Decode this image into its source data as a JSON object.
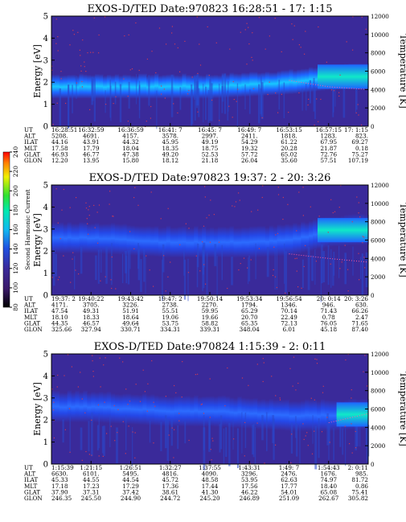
{
  "colors": {
    "background_low": "#3a2a9a",
    "band": "#1e64ff",
    "band_core": "#18c8ff",
    "hot_dots": "#c83a5a"
  },
  "colorbar": {
    "label": "Second Harmonic Current",
    "ticks": [
      "80",
      "100",
      "120",
      "140",
      "160",
      "180",
      "200",
      "220",
      "240"
    ]
  },
  "ephem_labels": [
    "UT",
    "ALT",
    "ILAT",
    "MLT",
    "GLAT",
    "GLON"
  ],
  "panels": [
    {
      "title": "EXOS-D/TED   Date:970823  16:28:51 - 17: 1:15",
      "ylabel": "Energy [eV]",
      "y2label": "Temperature [K]",
      "yticks": [
        "0",
        "1",
        "2",
        "3",
        "4",
        "5"
      ],
      "y2ticks": [
        "0",
        "2000",
        "4000",
        "6000",
        "8000",
        "10000",
        "12000"
      ],
      "columns": [
        {
          "UT": "16:28:51",
          "ALT": "5208.",
          "ILAT": "44.16",
          "MLT": "17.58",
          "GLAT": "46.93",
          "GLON": "12.20"
        },
        {
          "UT": "16:32:59",
          "ALT": "4691.",
          "ILAT": "43.91",
          "MLT": "17.79",
          "GLAT": "46.77",
          "GLON": "13.95"
        },
        {
          "UT": "16:36:59",
          "ALT": "4157.",
          "ILAT": "44.32",
          "MLT": "18.04",
          "GLAT": "47.38",
          "GLON": "15.80"
        },
        {
          "UT": "16:41: 7",
          "ALT": "3578.",
          "ILAT": "45.95",
          "MLT": "18.35",
          "GLAT": "49.20",
          "GLON": "18.12"
        },
        {
          "UT": "16:45: 7",
          "ALT": "2997.",
          "ILAT": "49.19",
          "MLT": "18.75",
          "GLAT": "52.53",
          "GLON": "21.18"
        },
        {
          "UT": "16:49: 7",
          "ALT": "2411.",
          "ILAT": "54.29",
          "MLT": "19.32",
          "GLAT": "57.72",
          "GLON": "26.04"
        },
        {
          "UT": "16:53:15",
          "ALT": "1818.",
          "ILAT": "61.22",
          "MLT": "20.28",
          "GLAT": "65.02",
          "GLON": "35.60"
        },
        {
          "UT": "16:57:15",
          "ALT": "1283.",
          "ILAT": "67.95",
          "MLT": "21.87",
          "GLAT": "72.76",
          "GLON": "57.51"
        },
        {
          "UT": "17: 1:15",
          "ALT": "823.",
          "ILAT": "69.27",
          "MLT": "0.18",
          "GLAT": "75.27",
          "GLON": "107.19"
        }
      ]
    },
    {
      "title": "EXOS-D/TED   Date:970823  19:37: 2 - 20: 3:26",
      "ylabel": "Energy [eV]",
      "y2label": "Temperature [K]",
      "yticks": [
        "0",
        "1",
        "2",
        "3",
        "4",
        "5"
      ],
      "y2ticks": [
        "0",
        "2000",
        "4000",
        "6000",
        "8000",
        "10000",
        "12000"
      ],
      "columns": [
        {
          "UT": "19:37: 2",
          "ALT": "4171.",
          "ILAT": "47.54",
          "MLT": "18.10",
          "GLAT": "44.35",
          "GLON": "325.66"
        },
        {
          "UT": "19:40:22",
          "ALT": "3705.",
          "ILAT": "49.31",
          "MLT": "18.33",
          "GLAT": "46.57",
          "GLON": "327.94"
        },
        {
          "UT": "19:43:42",
          "ALT": "3226.",
          "ILAT": "51.91",
          "MLT": "18.64",
          "GLAT": "49.64",
          "GLON": "330.71"
        },
        {
          "UT": "19:47: 2",
          "ALT": "2738.",
          "ILAT": "55.51",
          "MLT": "19.06",
          "GLAT": "53.75",
          "GLON": "334.31"
        },
        {
          "UT": "19:50:14",
          "ALT": "2270.",
          "ILAT": "59.95",
          "MLT": "19.66",
          "GLAT": "58.82",
          "GLON": "339.31"
        },
        {
          "UT": "19:53:34",
          "ALT": "1794.",
          "ILAT": "65.29",
          "MLT": "20.70",
          "GLAT": "65.35",
          "GLON": "348.04"
        },
        {
          "UT": "19:56:54",
          "ALT": "1346.",
          "ILAT": "70.14",
          "MLT": "22.49",
          "GLAT": "72.13",
          "GLON": "6.01"
        },
        {
          "UT": "20: 0:14",
          "ALT": "946.",
          "ILAT": "71.43",
          "MLT": "0.78",
          "GLAT": "76.05",
          "GLON": "45.18"
        },
        {
          "UT": "20: 3:26",
          "ALT": "630.",
          "ILAT": "66.26",
          "MLT": "2.47",
          "GLAT": "71.65",
          "GLON": "87.40"
        }
      ]
    },
    {
      "title": "EXOS-D/TED   Date:970824   1:15:39 - 2: 0:11",
      "ylabel": "Energy [eV]",
      "y2label": "Temperature [K]",
      "yticks": [
        "0",
        "1",
        "2",
        "3",
        "4",
        "5"
      ],
      "y2ticks": [
        "0",
        "2000",
        "4000",
        "6000",
        "8000",
        "10000",
        "12000"
      ],
      "columns": [
        {
          "UT": "1:15:39",
          "ALT": "6630.",
          "ILAT": "45.33",
          "MLT": "17.18",
          "GLAT": "37.90",
          "GLON": "246.35"
        },
        {
          "UT": "1:21:15",
          "ALT": "6101.",
          "ILAT": "44.55",
          "MLT": "17.23",
          "GLAT": "37.31",
          "GLON": "245.50"
        },
        {
          "UT": "1:26:51",
          "ALT": "5495.",
          "ILAT": "44.54",
          "MLT": "17.29",
          "GLAT": "37.42",
          "GLON": "244.90"
        },
        {
          "UT": "1:32:27",
          "ALT": "4816.",
          "ILAT": "45.72",
          "MLT": "17.36",
          "GLAT": "38.61",
          "GLON": "244.72"
        },
        {
          "UT": "1:37:55",
          "ALT": "4090.",
          "ILAT": "48.58",
          "MLT": "17.44",
          "GLAT": "41.30",
          "GLON": "245.20"
        },
        {
          "UT": "1:43:31",
          "ALT": "3296.",
          "ILAT": "53.95",
          "MLT": "17.56",
          "GLAT": "46.22",
          "GLON": "246.89"
        },
        {
          "UT": "1:49: 7",
          "ALT": "2476.",
          "ILAT": "62.63",
          "MLT": "17.77",
          "GLAT": "54.01",
          "GLON": "251.09"
        },
        {
          "UT": "1:54:43",
          "ALT": "1676.",
          "ILAT": "74.97",
          "MLT": "18.40",
          "GLAT": "65.08",
          "GLON": "262.67"
        },
        {
          "UT": "2: 0:11",
          "ALT": "985.",
          "ILAT": "81.72",
          "MLT": "0.86",
          "GLAT": "75.41",
          "GLON": "305.82"
        }
      ]
    }
  ],
  "chart_data": [
    {
      "type": "heatmap",
      "title": "EXOS-D/TED   Date:970823  16:28:51 - 17: 1:15",
      "xlabel": "",
      "ylabel": "Energy [eV]",
      "y2label": "Temperature [K]",
      "ylim": [
        0,
        5
      ],
      "y2lim": [
        0,
        12000
      ],
      "x": [
        "16:28:51",
        "16:32:59",
        "16:36:59",
        "16:41: 7",
        "16:45: 7",
        "16:49: 7",
        "16:53:15",
        "16:57:15",
        "17: 1:15"
      ],
      "band_center_eV": [
        1.8,
        1.8,
        1.8,
        1.8,
        1.8,
        1.9,
        2.0,
        2.2,
        2.3
      ],
      "temperature_K": [
        null,
        null,
        null,
        null,
        null,
        null,
        5000,
        4300,
        4000
      ]
    },
    {
      "type": "heatmap",
      "title": "EXOS-D/TED   Date:970823  19:37: 2 - 20: 3:26",
      "xlabel": "",
      "ylabel": "Energy [eV]",
      "y2label": "Temperature [K]",
      "ylim": [
        0,
        5
      ],
      "y2lim": [
        0,
        12000
      ],
      "x": [
        "19:37: 2",
        "19:40:22",
        "19:43:42",
        "19:47: 2",
        "19:50:14",
        "19:53:34",
        "19:56:54",
        "20: 0:14",
        "20: 3:26"
      ],
      "band_center_eV": [
        2.6,
        2.6,
        2.5,
        2.4,
        2.4,
        2.4,
        2.5,
        2.9,
        3.0
      ],
      "temperature_K": [
        null,
        null,
        null,
        null,
        null,
        null,
        4500,
        4000,
        3600
      ]
    },
    {
      "type": "heatmap",
      "title": "EXOS-D/TED   Date:970824   1:15:39 - 2: 0:11",
      "xlabel": "",
      "ylabel": "Energy [eV]",
      "y2label": "Temperature [K]",
      "ylim": [
        0,
        5
      ],
      "y2lim": [
        0,
        12000
      ],
      "x": [
        "1:15:39",
        "1:21:15",
        "1:26:51",
        "1:32:27",
        "1:37:55",
        "1:43:31",
        "1:49: 7",
        "1:54:43",
        "2: 0:11"
      ],
      "band_center_eV": [
        2.6,
        2.6,
        2.5,
        2.4,
        2.4,
        2.3,
        2.2,
        2.2,
        2.3
      ],
      "temperature_K": [
        null,
        null,
        null,
        null,
        null,
        null,
        null,
        4500,
        5500
      ]
    }
  ]
}
